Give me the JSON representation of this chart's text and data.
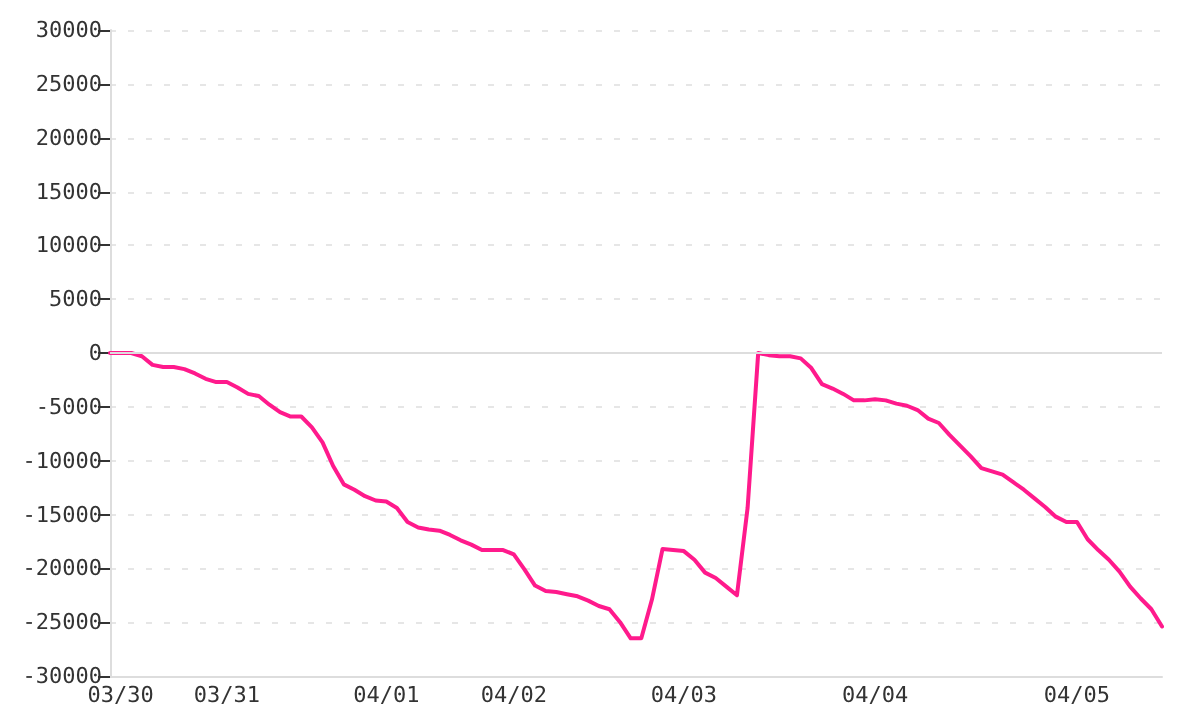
{
  "chart_data": {
    "type": "line",
    "categories": [
      null,
      "03/30",
      null,
      null,
      null,
      null,
      null,
      null,
      null,
      null,
      null,
      "03/31",
      null,
      null,
      null,
      null,
      null,
      null,
      null,
      null,
      null,
      null,
      null,
      null,
      null,
      null,
      "04/01",
      null,
      null,
      null,
      null,
      null,
      null,
      null,
      null,
      null,
      null,
      null,
      "04/02",
      null,
      null,
      null,
      null,
      null,
      null,
      null,
      null,
      null,
      null,
      null,
      null,
      null,
      null,
      null,
      "04/03",
      null,
      null,
      null,
      null,
      null,
      null,
      null,
      null,
      null,
      null,
      null,
      null,
      null,
      null,
      null,
      null,
      null,
      "04/04",
      null,
      null,
      null,
      null,
      null,
      null,
      null,
      null,
      null,
      null,
      null,
      null,
      null,
      null,
      null,
      null,
      null,
      null,
      "04/05",
      null,
      null,
      null,
      null,
      null,
      null,
      null,
      null
    ],
    "series": [
      {
        "color": "#ff1a8c",
        "values": [
          0,
          0,
          0,
          -300,
          -1100,
          -1300,
          -1300,
          -1500,
          -1900,
          -2400,
          -2700,
          -2700,
          -3200,
          -3800,
          -4000,
          -4800,
          -5500,
          -5900,
          -5900,
          -6900,
          -8300,
          -10500,
          -12200,
          -12700,
          -13300,
          -13700,
          -13800,
          -14400,
          -15700,
          -16200,
          -16400,
          -16500,
          -16900,
          -17400,
          -17800,
          -18300,
          -18300,
          -18300,
          -18700,
          -20100,
          -21600,
          -22100,
          -22200,
          -22400,
          -22600,
          -23000,
          -23500,
          -23800,
          -25000,
          -26500,
          -26500,
          -22900,
          -18200,
          -18300,
          -18400,
          -19200,
          -20400,
          -20900,
          -21700,
          -22500,
          -14400,
          0,
          -200,
          -300,
          -300,
          -500,
          -1400,
          -2900,
          -3300,
          -3800,
          -4400,
          -4400,
          -4300,
          -4400,
          -4700,
          -4900,
          -5300,
          -6100,
          -6500,
          -7600,
          -8600,
          -9600,
          -10700,
          -11000,
          -11300,
          -12000,
          -12700,
          -13500,
          -14300,
          -15200,
          -15700,
          -15700,
          -17300,
          -18300,
          -19200,
          -20300,
          -21700,
          -22800,
          -23800,
          -25400
        ]
      }
    ],
    "ylim": [
      -30000,
      30000
    ],
    "yticks": [
      -30000,
      -25000,
      -20000,
      -15000,
      -10000,
      -5000,
      0,
      5000,
      10000,
      15000,
      20000,
      25000,
      30000
    ],
    "grid": "y",
    "marker": "none",
    "line_style": "solid"
  }
}
